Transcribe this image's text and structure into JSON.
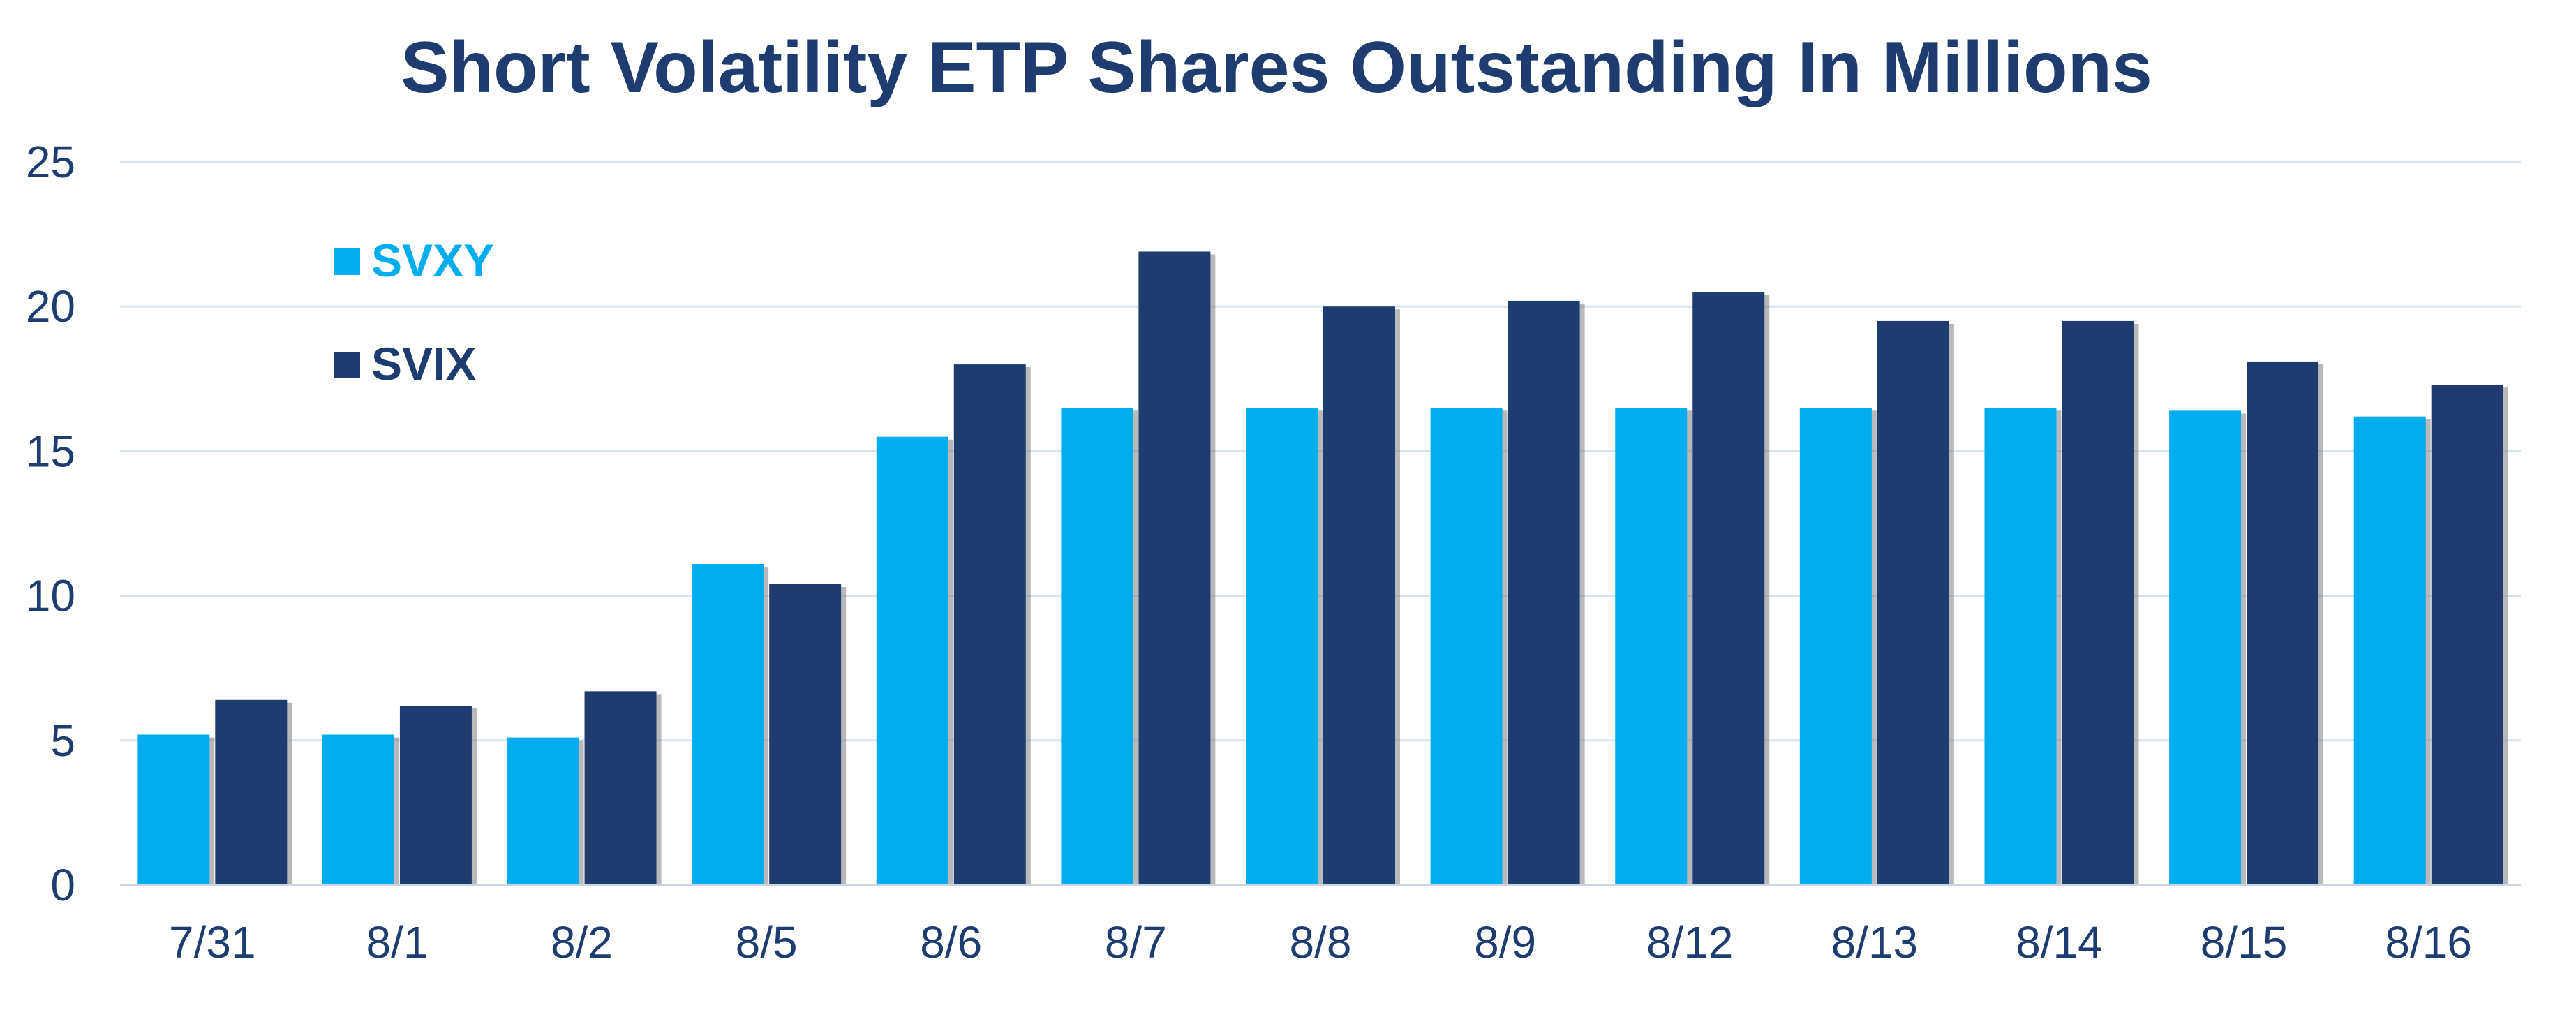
{
  "chart_data": {
    "type": "bar",
    "title": "Short Volatility ETP Shares Outstanding In Millions",
    "categories": [
      "7/31",
      "8/1",
      "8/2",
      "8/5",
      "8/6",
      "8/7",
      "8/8",
      "8/9",
      "8/12",
      "8/13",
      "8/14",
      "8/15",
      "8/16"
    ],
    "series": [
      {
        "name": "SVXY",
        "color": "#00adee",
        "values": [
          5.2,
          5.2,
          5.1,
          11.1,
          15.5,
          16.5,
          16.5,
          16.5,
          16.5,
          16.5,
          16.5,
          16.4,
          16.2
        ]
      },
      {
        "name": "SVIX",
        "color": "#1f3c70",
        "values": [
          6.4,
          6.2,
          6.7,
          10.4,
          18.0,
          21.9,
          20.0,
          20.2,
          20.5,
          19.5,
          19.5,
          18.1,
          17.3
        ]
      }
    ],
    "ylim": [
      0,
      25
    ],
    "yticks": [
      0,
      5,
      10,
      15,
      20,
      25
    ],
    "xlabel": "",
    "ylabel": "",
    "grid": true,
    "legend_position": "top-left"
  }
}
